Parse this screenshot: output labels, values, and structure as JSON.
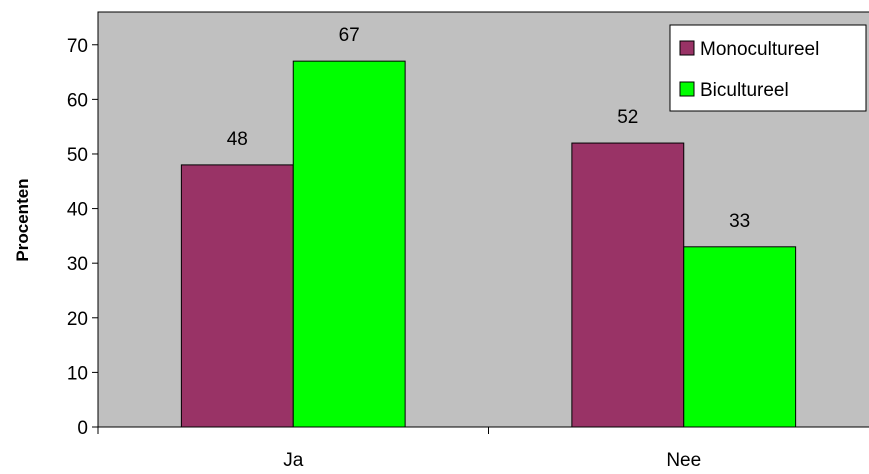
{
  "chart_data": {
    "type": "bar",
    "title": "",
    "xlabel": "",
    "ylabel": "Procenten",
    "categories": [
      "Ja",
      "Nee"
    ],
    "series": [
      {
        "name": "Monocultureel",
        "values": [
          48,
          52
        ],
        "color": "#993366"
      },
      {
        "name": "Bicultureel",
        "values": [
          67,
          33
        ],
        "color": "#00ff00"
      }
    ],
    "ylim": [
      0,
      76
    ],
    "yticks": [
      0,
      10,
      20,
      30,
      40,
      50,
      60,
      70
    ],
    "grid": false,
    "legend_position": "top-right",
    "plot_background": "#c0c0c0"
  }
}
